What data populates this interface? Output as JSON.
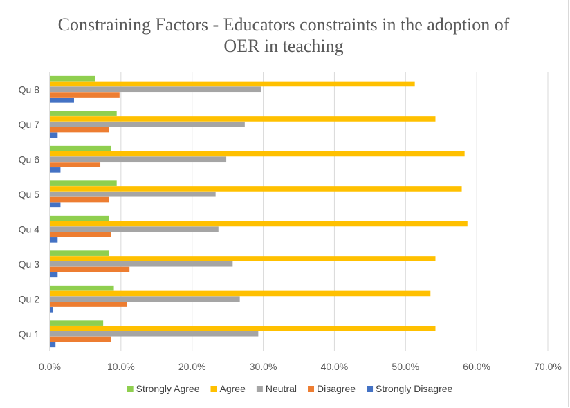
{
  "chart_data": {
    "type": "bar",
    "orientation": "horizontal",
    "title": "Constraining Factors - Educators constraints in the adoption of OER in teaching",
    "xlabel": "",
    "ylabel": "",
    "xlim": [
      0,
      0.7
    ],
    "x_ticks": [
      "0.0%",
      "10.0%",
      "20.0%",
      "30.0%",
      "40.0%",
      "50.0%",
      "60.0%",
      "70.0%"
    ],
    "categories": [
      "Qu 1",
      "Qu 2",
      "Qu 3",
      "Qu 4",
      "Qu 5",
      "Qu 6",
      "Qu 7",
      "Qu 8"
    ],
    "grid": true,
    "legend_position": "bottom",
    "series": [
      {
        "name": "Strongly Agree",
        "color": "#8fcf4f",
        "values": [
          0.075,
          0.09,
          0.083,
          0.083,
          0.094,
          0.086,
          0.094,
          0.064
        ]
      },
      {
        "name": "Agree",
        "color": "#ffc000",
        "values": [
          0.542,
          0.535,
          0.542,
          0.587,
          0.579,
          0.583,
          0.542,
          0.513
        ]
      },
      {
        "name": "Neutral",
        "color": "#a5a5a5",
        "values": [
          0.293,
          0.267,
          0.257,
          0.237,
          0.233,
          0.248,
          0.274,
          0.297
        ]
      },
      {
        "name": "Disagree",
        "color": "#ed7d31",
        "values": [
          0.086,
          0.108,
          0.112,
          0.086,
          0.083,
          0.071,
          0.083,
          0.098
        ]
      },
      {
        "name": "Strongly Disagree",
        "color": "#4472c4",
        "values": [
          0.008,
          0.004,
          0.011,
          0.011,
          0.015,
          0.015,
          0.011,
          0.034
        ]
      }
    ]
  }
}
